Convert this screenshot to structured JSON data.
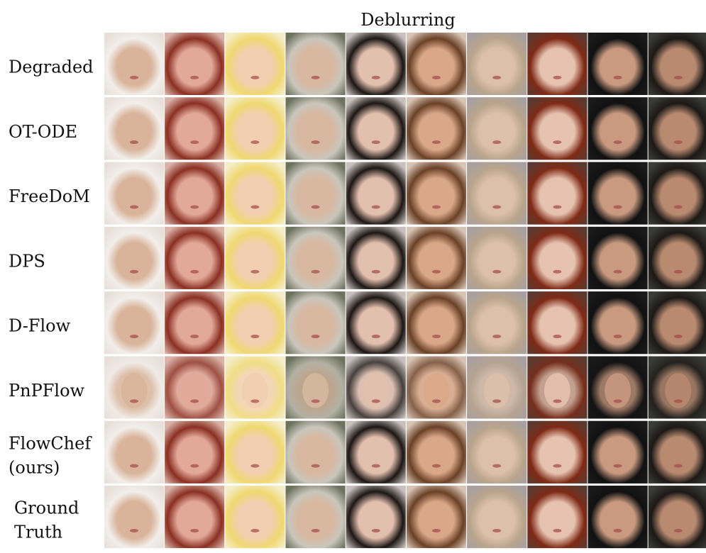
{
  "header": {
    "title": "Deblurring"
  },
  "rows": [
    {
      "label": [
        "Degraded"
      ]
    },
    {
      "label": [
        "OT-ODE"
      ]
    },
    {
      "label": [
        "FreeDoM"
      ]
    },
    {
      "label": [
        "DPS"
      ]
    },
    {
      "label": [
        "D-Flow"
      ]
    },
    {
      "label": [
        "PnPFlow"
      ]
    },
    {
      "label": [
        "FlowChef",
        "(ours)"
      ]
    },
    {
      "label": [
        "Ground",
        "Truth"
      ]
    }
  ]
}
